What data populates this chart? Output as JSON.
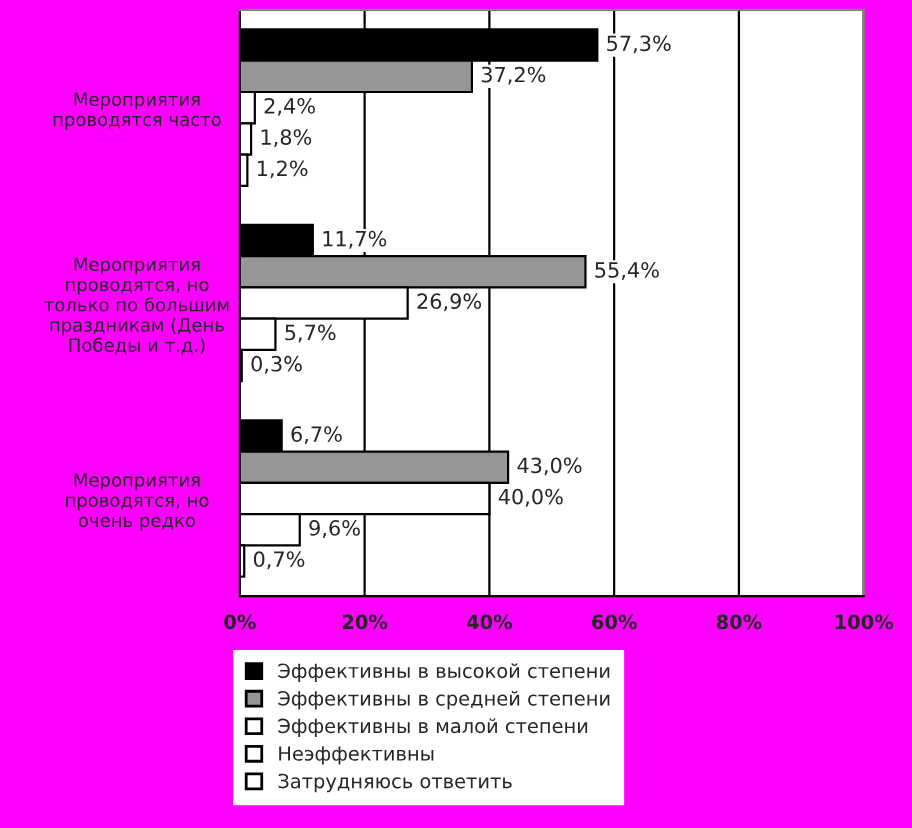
{
  "chart_data": {
    "type": "bar",
    "orientation": "horizontal",
    "categories": [
      "Мероприятия проводятся часто",
      "Мероприятия проводятся, но только по большим праздникам (День Победы и т.д.)",
      "Мероприятия проводятся, но очень редко"
    ],
    "series": [
      {
        "name": "Эффективны в высокой степени",
        "color": "#000000",
        "values": [
          57.3,
          11.7,
          6.7
        ],
        "value_labels": [
          "57,3%",
          "11,7%",
          "6,7%"
        ]
      },
      {
        "name": "Эффективны в средней степени",
        "color": "#969696",
        "values": [
          37.2,
          55.4,
          43.0
        ],
        "value_labels": [
          "37,2%",
          "55,4%",
          "43,0%"
        ]
      },
      {
        "name": "Эффективны в малой степени",
        "color": "#ffffff",
        "values": [
          2.4,
          26.9,
          40.0
        ],
        "value_labels": [
          "2,4%",
          "26,9%",
          "40,0%"
        ]
      },
      {
        "name": "Неэффективны",
        "color": "#ffffff",
        "values": [
          1.8,
          5.7,
          9.6
        ],
        "value_labels": [
          "1,8%",
          "5,7%",
          "9,6%"
        ]
      },
      {
        "name": "Затрудняюсь ответить",
        "color": "#ffffff",
        "values": [
          1.2,
          0.3,
          0.7
        ],
        "value_labels": [
          "1,2%",
          "0,3%",
          "0,7%"
        ]
      }
    ],
    "xlim": [
      0,
      100
    ],
    "xticks": [
      {
        "value": 0,
        "label": "0%"
      },
      {
        "value": 20,
        "label": "20%"
      },
      {
        "value": 40,
        "label": "40%"
      },
      {
        "value": 60,
        "label": "60%"
      },
      {
        "value": 80,
        "label": "80%"
      },
      {
        "value": 100,
        "label": "100%"
      }
    ],
    "grid": "x",
    "legend": "bottom"
  }
}
